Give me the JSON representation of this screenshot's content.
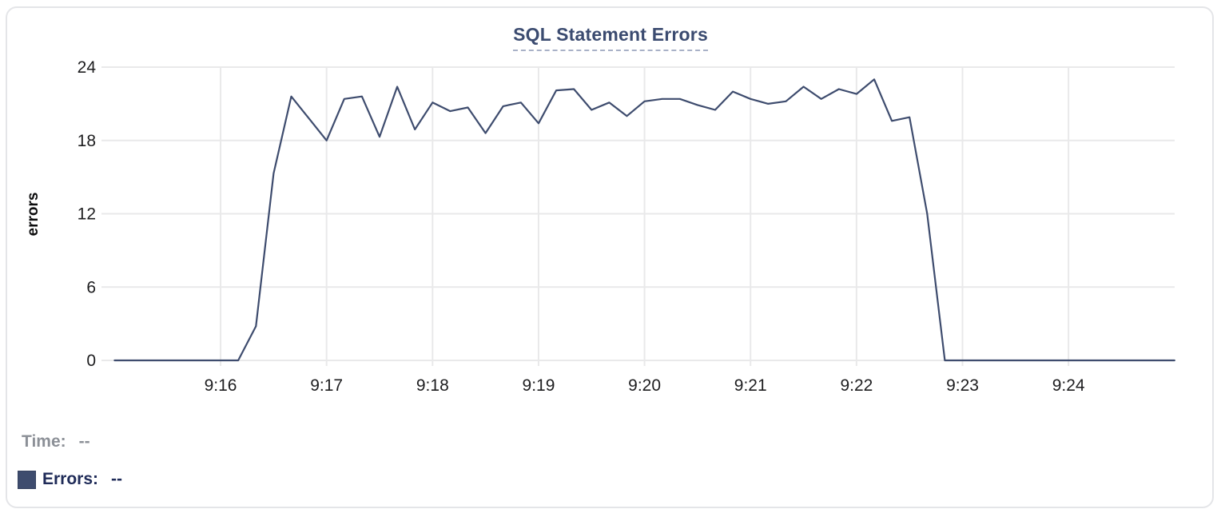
{
  "legend": {
    "time_label": "Time:",
    "time_value": "--",
    "errors_label": "Errors:",
    "errors_value": "--"
  },
  "colors": {
    "series_line": "#3e4c6e",
    "title_text": "#3b4b70",
    "title_underline": "#a8b1c7",
    "legend_time_text": "#8c9097",
    "legend_errors_text": "#1f2b58",
    "gridline": "#e9e9ea",
    "axis_tick_text": "#1d1d1f"
  },
  "chart_data": {
    "type": "line",
    "title": "SQL Statement Errors",
    "xlabel": "",
    "ylabel": "errors",
    "ylim": [
      0,
      24
    ],
    "y_ticks": [
      0,
      6,
      12,
      18,
      24
    ],
    "x_ticks": [
      "9:16",
      "9:17",
      "9:18",
      "9:19",
      "9:20",
      "9:21",
      "9:22",
      "9:23",
      "9:24"
    ],
    "x_range": [
      "9:15:00",
      "9:25:00"
    ],
    "grid": true,
    "legend_position": "bottom-left",
    "series": [
      {
        "name": "Errors",
        "color": "#3e4c6e",
        "times": [
          "9:15:00",
          "9:15:10",
          "9:15:20",
          "9:15:30",
          "9:15:40",
          "9:15:50",
          "9:16:00",
          "9:16:10",
          "9:16:20",
          "9:16:30",
          "9:16:40",
          "9:16:50",
          "9:17:00",
          "9:17:10",
          "9:17:20",
          "9:17:30",
          "9:17:40",
          "9:17:50",
          "9:18:00",
          "9:18:10",
          "9:18:20",
          "9:18:30",
          "9:18:40",
          "9:18:50",
          "9:19:00",
          "9:19:10",
          "9:19:20",
          "9:19:30",
          "9:19:40",
          "9:19:50",
          "9:20:00",
          "9:20:10",
          "9:20:20",
          "9:20:30",
          "9:20:40",
          "9:20:50",
          "9:21:00",
          "9:21:10",
          "9:21:20",
          "9:21:30",
          "9:21:40",
          "9:21:50",
          "9:22:00",
          "9:22:10",
          "9:22:20",
          "9:22:30",
          "9:22:40",
          "9:22:50",
          "9:23:00",
          "9:23:10",
          "9:23:20",
          "9:23:30",
          "9:23:40",
          "9:23:50",
          "9:24:00",
          "9:24:10",
          "9:24:20",
          "9:24:30",
          "9:24:40",
          "9:24:50",
          "9:25:00"
        ],
        "values": [
          0,
          0,
          0,
          0,
          0,
          0,
          0,
          0,
          2.8,
          15.3,
          21.6,
          19.8,
          18,
          21.4,
          21.6,
          18.3,
          22.4,
          18.9,
          21.1,
          20.4,
          20.7,
          18.6,
          20.8,
          21.1,
          19.4,
          22.1,
          22.2,
          20.5,
          21.1,
          20,
          21.2,
          21.4,
          21.4,
          20.9,
          20.5,
          22,
          21.4,
          21,
          21.2,
          22.4,
          21.4,
          22.2,
          21.8,
          23,
          19.6,
          19.9,
          12,
          0,
          0,
          0,
          0,
          0,
          0,
          0,
          0,
          0,
          0,
          0,
          0,
          0,
          0
        ]
      }
    ]
  }
}
